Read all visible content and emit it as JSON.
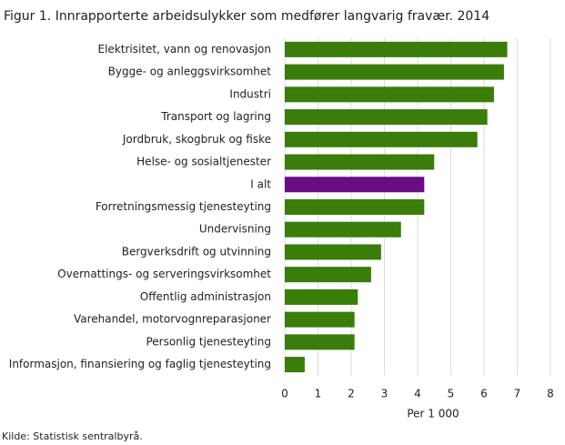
{
  "chart_data": {
    "type": "barh",
    "title": "Figur 1. Innrapporterte arbeidsulykker som medfører langvarig fravær. 2014",
    "categories": [
      "Elektrisitet, vann og renovasjon",
      "Bygge- og anleggsvirksomhet",
      "Industri",
      "Transport og lagring",
      "Jordbruk, skogbruk og fiske",
      "Helse- og sosialtjenester",
      "I alt",
      "Forretningsmessig tjenesteyting",
      "Undervisning",
      "Bergverksdrift og utvinning",
      "Overnattings- og serveringsvirksomhet",
      "Offentlig administrasjon",
      "Varehandel, motorvognreparasjoner",
      "Personlig tjenesteyting",
      "Informasjon, finansiering og faglig tjenesteyting"
    ],
    "values": [
      6.7,
      6.6,
      6.3,
      6.1,
      5.8,
      4.5,
      4.2,
      4.2,
      3.5,
      2.9,
      2.6,
      2.2,
      2.1,
      2.1,
      0.6
    ],
    "colors": [
      "#3a7d0a",
      "#3a7d0a",
      "#3a7d0a",
      "#3a7d0a",
      "#3a7d0a",
      "#3a7d0a",
      "#6a0d83",
      "#3a7d0a",
      "#3a7d0a",
      "#3a7d0a",
      "#3a7d0a",
      "#3a7d0a",
      "#3a7d0a",
      "#3a7d0a",
      "#3a7d0a"
    ],
    "xlim": [
      0,
      8
    ],
    "xticks": [
      0,
      1,
      2,
      3,
      4,
      5,
      6,
      7,
      8
    ],
    "grid": true,
    "xlabel": "Per 1 000",
    "source": "Kilde: Statistisk sentralbyrå."
  }
}
